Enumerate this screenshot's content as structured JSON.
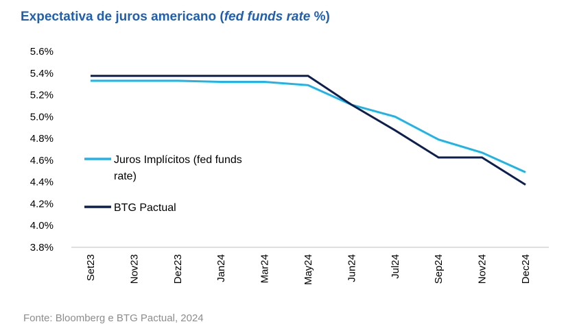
{
  "title": {
    "prefix": "Expectativa de juros americano (",
    "italic": "fed funds rate",
    "suffix": " %)"
  },
  "source": "Fonte: Bloomberg e BTG Pactual, 2024",
  "colors": {
    "title": "#1f5fae",
    "implied": "#1fb4e6",
    "btg": "#0d1f4e",
    "axis": "#bfbfbf"
  },
  "chart_data": {
    "type": "line",
    "title": "Expectativa de juros americano (fed funds rate %)",
    "xlabel": "",
    "ylabel": "",
    "categories": [
      "Set23",
      "Nov23",
      "Dez23",
      "Jan24",
      "Mar24",
      "May24",
      "Jun24",
      "Jul24",
      "Sep24",
      "Nov24",
      "Dec24"
    ],
    "ylim": [
      3.8,
      5.6
    ],
    "yticks": [
      3.8,
      4.0,
      4.2,
      4.4,
      4.6,
      4.8,
      5.0,
      5.2,
      5.4,
      5.6
    ],
    "ytick_labels": [
      "3.8%",
      "4.0%",
      "4.2%",
      "4.4%",
      "4.6%",
      "4.8%",
      "5.0%",
      "5.2%",
      "5.4%",
      "5.6%"
    ],
    "grid": false,
    "legend_position": "left",
    "series": [
      {
        "name": "Juros Implícitos (fed funds rate)",
        "legend_lines": [
          "Juros Implícitos (fed funds",
          "rate)"
        ],
        "values": [
          5.33,
          5.33,
          5.33,
          5.32,
          5.32,
          5.29,
          5.11,
          5.0,
          4.79,
          4.67,
          4.49
        ]
      },
      {
        "name": "BTG Pactual",
        "legend_lines": [
          "BTG Pactual"
        ],
        "values": [
          5.375,
          5.375,
          5.375,
          5.375,
          5.375,
          5.375,
          5.11,
          4.875,
          4.625,
          4.625,
          4.375
        ]
      }
    ]
  }
}
